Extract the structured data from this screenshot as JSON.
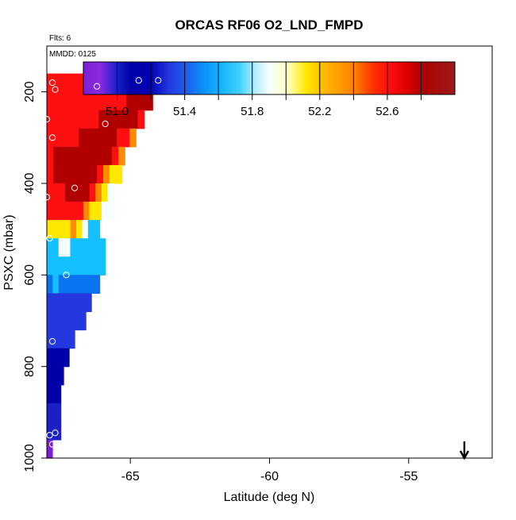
{
  "chart_data": {
    "type": "heatmap",
    "title": "ORCAS RF06 O2_LND_FMPD",
    "annotations": {
      "flights": "Flts: 6",
      "date": "MMDD: 0125"
    },
    "xlabel": "Latitude (deg N)",
    "ylabel": "PSXC (mbar)",
    "xlim": [
      -68,
      -52
    ],
    "ylim": [
      1000,
      100
    ],
    "x_ticks": [
      -65,
      -60,
      -55
    ],
    "x_tick_labels": [
      "-65",
      "-60",
      "-55"
    ],
    "y_ticks": [
      200,
      400,
      600,
      800,
      1000
    ],
    "y_tick_labels": [
      "200",
      "400",
      "600",
      "800",
      "1000"
    ],
    "colorbar": {
      "range": [
        50.8,
        53.0
      ],
      "ticks": [
        51.0,
        51.4,
        51.8,
        52.2,
        52.6
      ],
      "tick_labels": [
        "51.0",
        "51.4",
        "51.8",
        "52.2",
        "52.6"
      ],
      "boundaries": [
        50.8,
        51.0,
        51.2,
        51.4,
        51.6,
        51.8,
        52.0,
        52.2,
        52.4,
        52.6,
        52.8,
        53.0
      ],
      "colors": [
        "#7a1fd6",
        "#1a1fc8",
        "#0000a8",
        "#2438e0",
        "#0a74f0",
        "#14c0ff",
        "#f6ffff",
        "#ffe800",
        "#ff8c00",
        "#ff1010",
        "#b00000"
      ]
    },
    "arrow_marker": {
      "x": -53,
      "direction": "down"
    },
    "grid": false,
    "legend": "top-inside",
    "cells": [
      {
        "p": 180,
        "x0": -68,
        "x1": -63.8,
        "values": [
          52.7,
          52.7,
          52.7,
          52.7,
          52.7,
          52.7,
          52.7,
          52.7,
          52.7,
          52.7,
          52.7,
          52.9,
          52.9,
          52.9,
          52.9,
          52.9,
          52.9
        ]
      },
      {
        "p": 220,
        "x0": -68,
        "x1": -64.2,
        "values": [
          52.7,
          52.7,
          52.7,
          52.7,
          52.7,
          52.7,
          52.7,
          52.7,
          52.7,
          52.7,
          52.7,
          52.7,
          52.9,
          52.9,
          52.9,
          52.9
        ]
      },
      {
        "p": 260,
        "x0": -68,
        "x1": -64.5,
        "values": [
          52.7,
          52.7,
          52.7,
          52.7,
          52.7,
          52.7,
          52.7,
          52.7,
          52.9,
          52.9,
          52.9,
          52.9,
          52.9,
          52.9,
          52.7
        ]
      },
      {
        "p": 300,
        "x0": -68,
        "x1": -64.8,
        "values": [
          52.7,
          52.7,
          52.7,
          52.7,
          52.7,
          52.9,
          52.9,
          52.9,
          52.9,
          52.9,
          52.9,
          52.7,
          52.7,
          52.5
        ]
      },
      {
        "p": 340,
        "x0": -68,
        "x1": -65.2,
        "values": [
          52.7,
          52.9,
          52.9,
          52.9,
          52.9,
          52.9,
          52.9,
          52.9,
          52.9,
          52.9,
          52.7,
          52.5
        ]
      },
      {
        "p": 380,
        "x0": -68,
        "x1": -65.3,
        "values": [
          52.7,
          52.9,
          52.9,
          52.9,
          52.9,
          52.9,
          52.9,
          52.9,
          52.7,
          52.5,
          52.3,
          52.3
        ]
      },
      {
        "p": 420,
        "x0": -68,
        "x1": -65.6,
        "values": [
          52.7,
          52.7,
          52.7,
          52.9,
          52.9,
          52.9,
          52.9,
          52.7,
          52.5,
          52.3,
          52.1
        ]
      },
      {
        "p": 460,
        "x0": -68,
        "x1": -65.6,
        "values": [
          52.7,
          52.7,
          52.7,
          52.7,
          52.7,
          52.7,
          52.5,
          52.3,
          52.3,
          52.1,
          52.1
        ]
      },
      {
        "p": 500,
        "x0": -68,
        "x1": -66.1,
        "values": [
          52.3,
          52.3,
          52.3,
          52.3,
          52.5,
          52.3,
          52.1,
          51.9,
          51.9
        ]
      },
      {
        "p": 540,
        "x0": -68,
        "x1": -65.9,
        "values": [
          51.9,
          51.9,
          52.1,
          52.1,
          51.9,
          51.9,
          51.9,
          51.9,
          51.9,
          51.9
        ]
      },
      {
        "p": 580,
        "x0": -68,
        "x1": -65.9,
        "values": [
          51.9,
          51.9,
          51.9,
          51.9,
          51.9,
          51.9,
          51.9,
          51.9,
          51.9,
          51.9
        ]
      },
      {
        "p": 620,
        "x0": -68,
        "x1": -66.1,
        "values": [
          51.7,
          51.9,
          51.7,
          51.7,
          51.7,
          51.7,
          51.7,
          51.7,
          51.7
        ]
      },
      {
        "p": 660,
        "x0": -68,
        "x1": -66.4,
        "values": [
          51.5,
          51.5,
          51.5,
          51.5,
          51.5,
          51.5,
          51.5,
          51.5
        ]
      },
      {
        "p": 700,
        "x0": -68,
        "x1": -66.6,
        "values": [
          51.5,
          51.5,
          51.5,
          51.5,
          51.5,
          51.5,
          51.5
        ]
      },
      {
        "p": 740,
        "x0": -68,
        "x1": -67.0,
        "values": [
          51.5,
          51.5,
          51.5,
          51.5,
          51.5
        ]
      },
      {
        "p": 780,
        "x0": -68,
        "x1": -67.2,
        "values": [
          51.3,
          51.3,
          51.3,
          51.3
        ]
      },
      {
        "p": 820,
        "x0": -68,
        "x1": -67.4,
        "values": [
          51.3,
          51.3,
          51.3
        ]
      },
      {
        "p": 860,
        "x0": -68,
        "x1": -67.5,
        "values": [
          51.3,
          51.3
        ]
      },
      {
        "p": 900,
        "x0": -68,
        "x1": -67.5,
        "values": [
          51.1,
          51.1
        ]
      },
      {
        "p": 940,
        "x0": -68,
        "x1": -67.5,
        "values": [
          51.1,
          51.1
        ]
      },
      {
        "p": 980,
        "x0": -68,
        "x1": -67.8,
        "values": [
          50.9
        ]
      }
    ],
    "points": [
      [
        -67.8,
        180
      ],
      [
        -67.7,
        195
      ],
      [
        -64.7,
        175
      ],
      [
        -64.0,
        175
      ],
      [
        -66.2,
        188
      ],
      [
        -68.0,
        260
      ],
      [
        -65.9,
        270
      ],
      [
        -67.8,
        300
      ],
      [
        -67.0,
        410
      ],
      [
        -68.0,
        430
      ],
      [
        -67.9,
        520
      ],
      [
        -67.3,
        600
      ],
      [
        -67.8,
        745
      ],
      [
        -67.9,
        950
      ],
      [
        -67.8,
        970
      ],
      [
        -67.7,
        945
      ]
    ]
  }
}
